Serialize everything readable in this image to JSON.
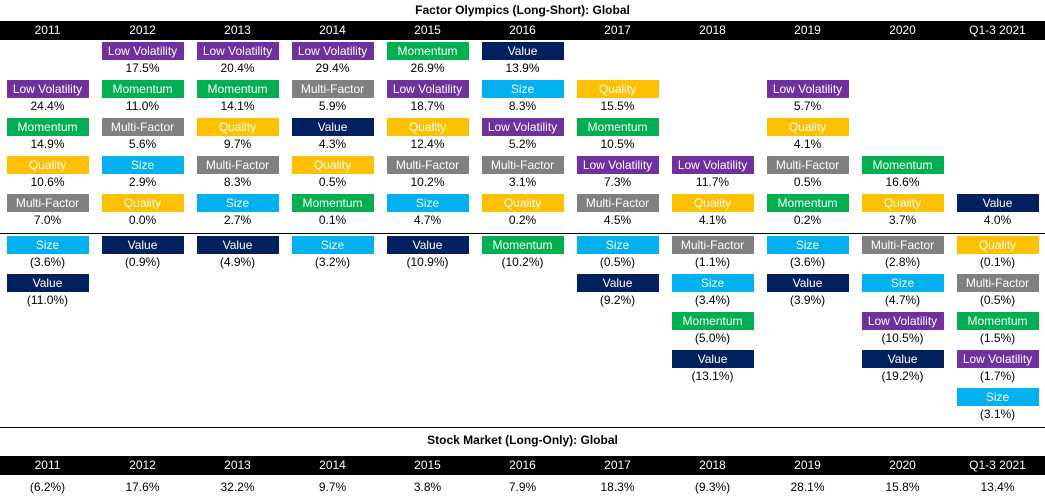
{
  "title": "Factor Olympics (Long-Short): Global",
  "market_title": "Stock Market (Long-Only): Global",
  "years": [
    "2011",
    "2012",
    "2013",
    "2014",
    "2015",
    "2016",
    "2017",
    "2018",
    "2019",
    "2020",
    "Q1-3 2021"
  ],
  "factor_colors": {
    "Low Volatility": {
      "bg": "#7030a0",
      "fg": "#ffffff"
    },
    "Momentum": {
      "bg": "#00b050",
      "fg": "#ffffff"
    },
    "Quality": {
      "bg": "#ffc000",
      "fg": "#ffffff"
    },
    "Multi-Factor": {
      "bg": "#808080",
      "fg": "#ffffff"
    },
    "Size": {
      "bg": "#00b0f0",
      "fg": "#ffffff"
    },
    "Value": {
      "bg": "#002060",
      "fg": "#ffffff"
    }
  },
  "chart_data": {
    "type": "table",
    "title": "Factor Olympics (Long-Short): Global",
    "columns": [
      "2011",
      "2012",
      "2013",
      "2014",
      "2015",
      "2016",
      "2017",
      "2018",
      "2019",
      "2020",
      "Q1-3 2021"
    ],
    "rankings": [
      {
        "year": "2011",
        "entries": [
          {
            "factor": "Low Volatility",
            "return": "24.4%"
          },
          {
            "factor": "Momentum",
            "return": "14.9%"
          },
          {
            "factor": "Quality",
            "return": "10.6%"
          },
          {
            "factor": "Multi-Factor",
            "return": "7.0%"
          },
          {
            "factor": "Size",
            "return": "(3.6%)"
          },
          {
            "factor": "Value",
            "return": "(11.0%)"
          }
        ]
      },
      {
        "year": "2012",
        "entries": [
          {
            "factor": "Low Volatility",
            "return": "17.5%"
          },
          {
            "factor": "Momentum",
            "return": "11.0%"
          },
          {
            "factor": "Multi-Factor",
            "return": "5.6%"
          },
          {
            "factor": "Size",
            "return": "2.9%"
          },
          {
            "factor": "Quality",
            "return": "0.0%"
          },
          {
            "factor": "Value",
            "return": "(0.9%)"
          }
        ]
      },
      {
        "year": "2013",
        "entries": [
          {
            "factor": "Low Volatility",
            "return": "20.4%"
          },
          {
            "factor": "Momentum",
            "return": "14.1%"
          },
          {
            "factor": "Quality",
            "return": "9.7%"
          },
          {
            "factor": "Multi-Factor",
            "return": "8.3%"
          },
          {
            "factor": "Size",
            "return": "2.7%"
          },
          {
            "factor": "Value",
            "return": "(4.9%)"
          }
        ]
      },
      {
        "year": "2014",
        "entries": [
          {
            "factor": "Low Volatility",
            "return": "29.4%"
          },
          {
            "factor": "Multi-Factor",
            "return": "5.9%"
          },
          {
            "factor": "Value",
            "return": "4.3%"
          },
          {
            "factor": "Quality",
            "return": "0.5%"
          },
          {
            "factor": "Momentum",
            "return": "0.1%"
          },
          {
            "factor": "Size",
            "return": "(3.2%)"
          }
        ]
      },
      {
        "year": "2015",
        "entries": [
          {
            "factor": "Momentum",
            "return": "26.9%"
          },
          {
            "factor": "Low Volatility",
            "return": "18.7%"
          },
          {
            "factor": "Quality",
            "return": "12.4%"
          },
          {
            "factor": "Multi-Factor",
            "return": "10.2%"
          },
          {
            "factor": "Size",
            "return": "4.7%"
          },
          {
            "factor": "Value",
            "return": "(10.9%)"
          }
        ]
      },
      {
        "year": "2016",
        "entries": [
          {
            "factor": "Value",
            "return": "13.9%"
          },
          {
            "factor": "Size",
            "return": "8.3%"
          },
          {
            "factor": "Low Volatility",
            "return": "5.2%"
          },
          {
            "factor": "Multi-Factor",
            "return": "3.1%"
          },
          {
            "factor": "Quality",
            "return": "0.2%"
          },
          {
            "factor": "Momentum",
            "return": "(10.2%)"
          }
        ]
      },
      {
        "year": "2017",
        "entries": [
          {
            "factor": "Quality",
            "return": "15.5%"
          },
          {
            "factor": "Momentum",
            "return": "10.5%"
          },
          {
            "factor": "Low Volatility",
            "return": "7.3%"
          },
          {
            "factor": "Multi-Factor",
            "return": "4.5%"
          },
          {
            "factor": "Size",
            "return": "(0.5%)"
          },
          {
            "factor": "Value",
            "return": "(9.2%)"
          }
        ]
      },
      {
        "year": "2018",
        "entries": [
          {
            "factor": "Low Volatility",
            "return": "11.7%"
          },
          {
            "factor": "Quality",
            "return": "4.1%"
          },
          {
            "factor": "Multi-Factor",
            "return": "(1.1%)"
          },
          {
            "factor": "Size",
            "return": "(3.4%)"
          },
          {
            "factor": "Momentum",
            "return": "(5.0%)"
          },
          {
            "factor": "Value",
            "return": "(13.1%)"
          }
        ]
      },
      {
        "year": "2019",
        "entries": [
          {
            "factor": "Low Volatility",
            "return": "5.7%"
          },
          {
            "factor": "Quality",
            "return": "4.1%"
          },
          {
            "factor": "Multi-Factor",
            "return": "0.5%"
          },
          {
            "factor": "Momentum",
            "return": "0.2%"
          },
          {
            "factor": "Size",
            "return": "(3.6%)"
          },
          {
            "factor": "Value",
            "return": "(3.9%)"
          }
        ]
      },
      {
        "year": "2020",
        "entries": [
          {
            "factor": "Momentum",
            "return": "16.6%"
          },
          {
            "factor": "Quality",
            "return": "3.7%"
          },
          {
            "factor": "Multi-Factor",
            "return": "(2.8%)"
          },
          {
            "factor": "Size",
            "return": "(4.7%)"
          },
          {
            "factor": "Low Volatility",
            "return": "(10.5%)"
          },
          {
            "factor": "Value",
            "return": "(19.2%)"
          }
        ]
      },
      {
        "year": "Q1-3 2021",
        "entries": [
          {
            "factor": "Value",
            "return": "4.0%"
          },
          {
            "factor": "Quality",
            "return": "(0.1%)"
          },
          {
            "factor": "Multi-Factor",
            "return": "(0.5%)"
          },
          {
            "factor": "Momentum",
            "return": "(1.5%)"
          },
          {
            "factor": "Low Volatility",
            "return": "(1.7%)"
          },
          {
            "factor": "Size",
            "return": "(3.1%)"
          }
        ]
      }
    ],
    "market_returns": [
      "(6.2%)",
      "17.6%",
      "32.2%",
      "9.7%",
      "3.8%",
      "7.9%",
      "18.3%",
      "(9.3%)",
      "28.1%",
      "15.8%",
      "13.4%"
    ]
  }
}
